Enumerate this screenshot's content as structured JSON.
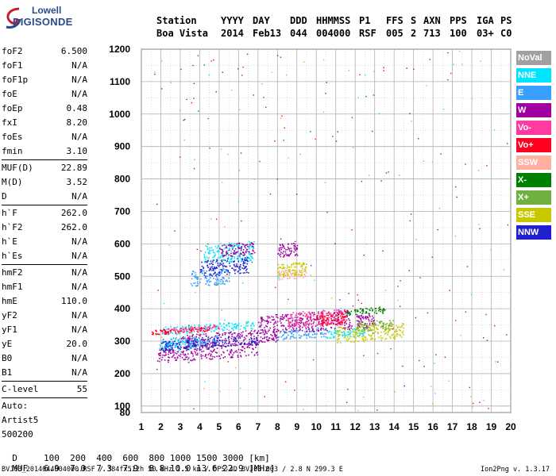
{
  "logo": {
    "line1": "Lowell",
    "line2": "DIGISONDE"
  },
  "header": {
    "labels": [
      "Station",
      "YYYY",
      "DAY",
      "DDD",
      "HHMMSS",
      "P1",
      "FFS",
      "S",
      "AXN",
      "PPS",
      "IGA",
      "PS"
    ],
    "values": [
      "Boa Vista",
      "2014",
      "Feb13",
      "044",
      "004000",
      "RSF",
      "005",
      "2",
      "713",
      "100",
      "03+",
      "C0"
    ]
  },
  "params": [
    {
      "name": "foF2",
      "value": "6.500"
    },
    {
      "name": "foF1",
      "value": "N/A"
    },
    {
      "name": "foF1p",
      "value": "N/A"
    },
    {
      "name": "foE",
      "value": "N/A"
    },
    {
      "name": "foEp",
      "value": "0.48"
    },
    {
      "name": "fxI",
      "value": "8.20"
    },
    {
      "name": "foEs",
      "value": "N/A"
    },
    {
      "name": "fmin",
      "value": "3.10"
    },
    {
      "sep": true
    },
    {
      "name": "MUF(D)",
      "value": "22.89"
    },
    {
      "name": "M(D)",
      "value": "3.52"
    },
    {
      "name": "D",
      "value": "N/A"
    },
    {
      "sep": true
    },
    {
      "name": "h`F",
      "value": "262.0"
    },
    {
      "name": "h`F2",
      "value": "262.0"
    },
    {
      "name": "h`E",
      "value": "N/A"
    },
    {
      "name": "h`Es",
      "value": "N/A"
    },
    {
      "sep": true
    },
    {
      "name": "hmF2",
      "value": "N/A"
    },
    {
      "name": "hmF1",
      "value": "N/A"
    },
    {
      "name": "hmE",
      "value": "110.0"
    },
    {
      "name": "yF2",
      "value": "N/A"
    },
    {
      "name": "yF1",
      "value": "N/A"
    },
    {
      "name": "yE",
      "value": "20.0"
    },
    {
      "name": "B0",
      "value": "N/A"
    },
    {
      "name": "B1",
      "value": "N/A"
    },
    {
      "sep": true
    },
    {
      "name": "C-level",
      "value": "55"
    },
    {
      "sep": true
    },
    {
      "name": "Auto:",
      "value": ""
    },
    {
      "name": "Artist5",
      "value": ""
    },
    {
      "name": "500200",
      "value": ""
    }
  ],
  "muf_table": {
    "d_label": "D",
    "d_values": [
      "100",
      "200",
      "400",
      "600",
      "800",
      "1000",
      "1500",
      "3000"
    ],
    "d_unit": "[km]",
    "muf_label": "MUF",
    "muf_values": [
      "6.9",
      "7.0",
      "7.3",
      "7.9",
      "8.8",
      "10.0",
      "13.6",
      "22.9"
    ],
    "muf_unit": "[MHz]"
  },
  "footer": "BVJ03_2014044004000.RSF / 384fx512h 50 kHz 2.5 km / DPS-4D BVJ03 003 / 2.8 N 299.3 E",
  "footer_right": "Ion2Png v. 1.3.17",
  "legend": [
    {
      "label": "NoVal",
      "color": "#a0a0a0"
    },
    {
      "label": "NNE",
      "color": "#00e5ff"
    },
    {
      "label": "E",
      "color": "#3aa0ff"
    },
    {
      "label": "W",
      "color": "#a000a0"
    },
    {
      "label": "Vo-",
      "color": "#ff3aa0"
    },
    {
      "label": "Vo+",
      "color": "#ff0020"
    },
    {
      "label": "SSW",
      "color": "#ffb0a0"
    },
    {
      "label": "X-",
      "color": "#008000"
    },
    {
      "label": "X+",
      "color": "#70b040"
    },
    {
      "label": "SSE",
      "color": "#c8c800"
    },
    {
      "label": "NNW",
      "color": "#2020d0"
    }
  ],
  "chart_data": {
    "type": "scatter",
    "title": "",
    "xlabel": "",
    "ylabel": "",
    "xlim": [
      1,
      20
    ],
    "ylim": [
      80,
      1200
    ],
    "x_ticks": [
      1,
      2,
      3,
      4,
      5,
      6,
      7,
      8,
      9,
      10,
      11,
      12,
      13,
      14,
      15,
      16,
      17,
      18,
      19,
      20
    ],
    "y_ticks": [
      80,
      100,
      200,
      300,
      400,
      500,
      600,
      700,
      800,
      900,
      1000,
      1100,
      1200
    ],
    "grid": true,
    "legend_position": "right",
    "series": [
      {
        "name": "NNE",
        "color": "#00e5ff",
        "clusters": [
          {
            "x": [
              1.9,
              4.2
            ],
            "y": [
              270,
              300
            ]
          },
          {
            "x": [
              2.0,
              6.8
            ],
            "y": [
              320,
              345
            ]
          },
          {
            "x": [
              4.2,
              6.8
            ],
            "y": [
              540,
              600
            ]
          },
          {
            "x": [
              10.5,
              12.5
            ],
            "y": [
              310,
              335
            ]
          }
        ]
      },
      {
        "name": "E",
        "color": "#3aa0ff",
        "clusters": [
          {
            "x": [
              2.0,
              5.0
            ],
            "y": [
              280,
              310
            ]
          },
          {
            "x": [
              3.5,
              5.5
            ],
            "y": [
              470,
              520
            ]
          },
          {
            "x": [
              8.0,
              10.5
            ],
            "y": [
              305,
              335
            ]
          }
        ]
      },
      {
        "name": "W",
        "color": "#a000a0",
        "clusters": [
          {
            "x": [
              1.8,
              7.0
            ],
            "y": [
              235,
              280
            ]
          },
          {
            "x": [
              3.0,
              8.0
            ],
            "y": [
              280,
              320
            ]
          },
          {
            "x": [
              7.0,
              11.8
            ],
            "y": [
              320,
              380
            ]
          },
          {
            "x": [
              12.0,
              13.0
            ],
            "y": [
              340,
              380
            ]
          },
          {
            "x": [
              5.0,
              6.8
            ],
            "y": [
              560,
              600
            ]
          },
          {
            "x": [
              8.0,
              9.0
            ],
            "y": [
              560,
              600
            ]
          }
        ]
      },
      {
        "name": "Vo-",
        "color": "#ff3aa0",
        "clusters": [
          {
            "x": [
              2.0,
              5.0
            ],
            "y": [
              325,
              340
            ]
          },
          {
            "x": [
              8.5,
              11.5
            ],
            "y": [
              340,
              390
            ]
          }
        ]
      },
      {
        "name": "Vo+",
        "color": "#ff0020",
        "clusters": [
          {
            "x": [
              1.5,
              4.5
            ],
            "y": [
              320,
              335
            ]
          },
          {
            "x": [
              10.0,
              11.5
            ],
            "y": [
              350,
              390
            ]
          }
        ]
      },
      {
        "name": "SSW",
        "color": "#ffb0a0",
        "clusters": [
          {
            "x": [
              8.0,
              9.5
            ],
            "y": [
              490,
              520
            ]
          }
        ]
      },
      {
        "name": "X-",
        "color": "#008000",
        "clusters": [
          {
            "x": [
              11.5,
              13.5
            ],
            "y": [
              380,
              400
            ]
          }
        ]
      },
      {
        "name": "X+",
        "color": "#70b040",
        "clusters": [
          {
            "x": [
              12.0,
              14.0
            ],
            "y": [
              330,
              360
            ]
          }
        ]
      },
      {
        "name": "SSE",
        "color": "#c8c800",
        "clusters": [
          {
            "x": [
              11.0,
              14.5
            ],
            "y": [
              295,
              345
            ]
          },
          {
            "x": [
              8.0,
              9.5
            ],
            "y": [
              500,
              540
            ]
          }
        ]
      },
      {
        "name": "NNW",
        "color": "#2020d0",
        "clusters": [
          {
            "x": [
              2.0,
              7.0
            ],
            "y": [
              270,
              300
            ]
          },
          {
            "x": [
              4.0,
              6.5
            ],
            "y": [
              500,
              550
            ]
          }
        ]
      }
    ]
  }
}
